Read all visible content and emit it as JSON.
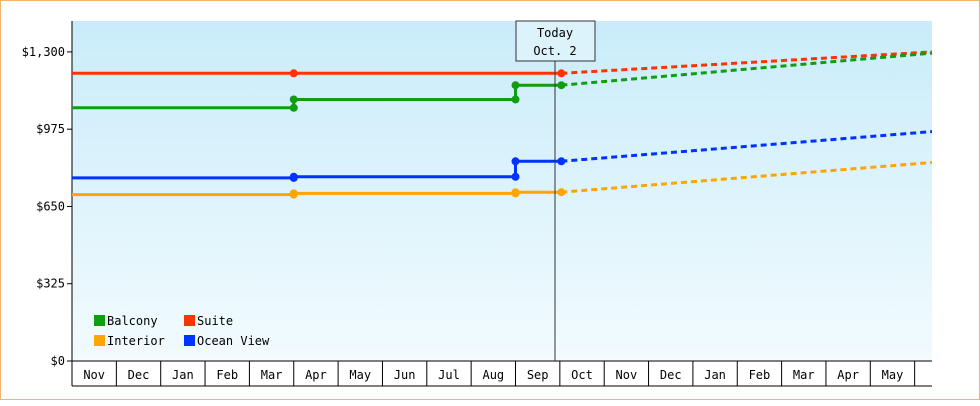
{
  "chart_data": {
    "type": "line",
    "title": "",
    "xlabel": "",
    "ylabel": "",
    "ylim": [
      0,
      1430
    ],
    "yticks": [
      "$0",
      "$325",
      "$650",
      "$975",
      "$1,300"
    ],
    "ytick_values": [
      0,
      325,
      650,
      975,
      1300
    ],
    "grid": false,
    "legend_position": "bottom-left",
    "months": [
      "Nov",
      "Dec",
      "Jan",
      "Feb",
      "Mar",
      "Apr",
      "May",
      "Jun",
      "Jul",
      "Aug",
      "Sep",
      "Oct",
      "Nov",
      "Dec",
      "Jan",
      "Feb",
      "Mar",
      "Apr",
      "May"
    ],
    "today_marker": {
      "line1": "Today",
      "line2": "Oct. 2",
      "x": "Oct. 2"
    },
    "series": [
      {
        "name": "Suite",
        "color": "#ff3300",
        "actual": [
          [
            "Nov 1",
            1210
          ],
          [
            "Apr 1",
            1210
          ],
          [
            "Oct 2",
            1210
          ]
        ],
        "projected": [
          [
            "Oct 2",
            1210
          ],
          [
            "Jun 30",
            1300
          ]
        ]
      },
      {
        "name": "Balcony",
        "color": "#109e10",
        "actual": [
          [
            "Nov 1",
            1065
          ],
          [
            "Apr 1",
            1065
          ],
          [
            "Apr 1",
            1100
          ],
          [
            "Sep 1",
            1100
          ],
          [
            "Sep 1",
            1160
          ],
          [
            "Oct 2",
            1160
          ]
        ],
        "projected": [
          [
            "Oct 2",
            1160
          ],
          [
            "Jun 30",
            1295
          ]
        ]
      },
      {
        "name": "Ocean View",
        "color": "#0033ff",
        "actual": [
          [
            "Nov 1",
            770
          ],
          [
            "Apr 1",
            770
          ],
          [
            "Apr 1",
            775
          ],
          [
            "Sep 1",
            775
          ],
          [
            "Sep 1",
            840
          ],
          [
            "Oct 2",
            840
          ]
        ],
        "projected": [
          [
            "Oct 2",
            840
          ],
          [
            "Jun 30",
            965
          ]
        ]
      },
      {
        "name": "Interior",
        "color": "#ffa500",
        "actual": [
          [
            "Nov 1",
            700
          ],
          [
            "Apr 1",
            700
          ],
          [
            "Apr 1",
            705
          ],
          [
            "Sep 1",
            705
          ],
          [
            "Sep 1",
            710
          ],
          [
            "Oct 2",
            710
          ]
        ],
        "projected": [
          [
            "Oct 2",
            710
          ],
          [
            "Jun 30",
            835
          ]
        ]
      }
    ],
    "legend": [
      {
        "name": "Balcony",
        "color": "#109e10"
      },
      {
        "name": "Suite",
        "color": "#ff3300"
      },
      {
        "name": "Interior",
        "color": "#ffa500"
      },
      {
        "name": "Ocean View",
        "color": "#0033ff"
      }
    ]
  }
}
